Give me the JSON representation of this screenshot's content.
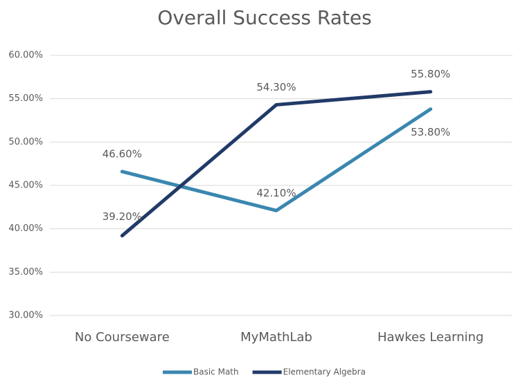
{
  "chart_data": {
    "type": "line",
    "title": "Overall Success Rates",
    "categories": [
      "No Courseware",
      "MyMathLab",
      "Hawkes Learning"
    ],
    "series": [
      {
        "name": "Basic Math",
        "color": "#3a87b0",
        "values": [
          46.6,
          42.1,
          53.8
        ],
        "value_labels": [
          "46.60%",
          "42.10%",
          "53.80%"
        ]
      },
      {
        "name": "Elementary Algebra",
        "color": "#213a68",
        "values": [
          39.2,
          54.3,
          55.8
        ],
        "value_labels": [
          "39.20%",
          "54.30%",
          "55.80%"
        ]
      }
    ],
    "ylim": [
      30,
      60
    ],
    "yticks": [
      {
        "value": 30,
        "label": "30.00%"
      },
      {
        "value": 35,
        "label": "35.00%"
      },
      {
        "value": 40,
        "label": "40.00%"
      },
      {
        "value": 45,
        "label": "45.00%"
      },
      {
        "value": 50,
        "label": "50.00%"
      },
      {
        "value": 55,
        "label": "55.00%"
      },
      {
        "value": 60,
        "label": "60.00%"
      }
    ],
    "grid": true,
    "legend": "bottom"
  }
}
